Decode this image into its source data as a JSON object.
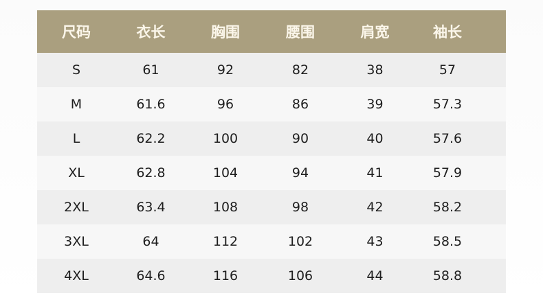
{
  "colors": {
    "header_bg": "#aa9f7f",
    "header_text": "#fbf6ea",
    "row_odd": "#eeeeee",
    "row_even": "#f7f7f7"
  },
  "table": {
    "headers": [
      "尺码",
      "衣长",
      "胸围",
      "腰围",
      "肩宽",
      "袖长"
    ],
    "rows": [
      [
        "S",
        "61",
        "92",
        "82",
        "38",
        "57"
      ],
      [
        "M",
        "61.6",
        "96",
        "86",
        "39",
        "57.3"
      ],
      [
        "L",
        "62.2",
        "100",
        "90",
        "40",
        "57.6"
      ],
      [
        "XL",
        "62.8",
        "104",
        "94",
        "41",
        "57.9"
      ],
      [
        "2XL",
        "63.4",
        "108",
        "98",
        "42",
        "58.2"
      ],
      [
        "3XL",
        "64",
        "112",
        "102",
        "43",
        "58.5"
      ],
      [
        "4XL",
        "64.6",
        "116",
        "106",
        "44",
        "58.8"
      ]
    ]
  }
}
